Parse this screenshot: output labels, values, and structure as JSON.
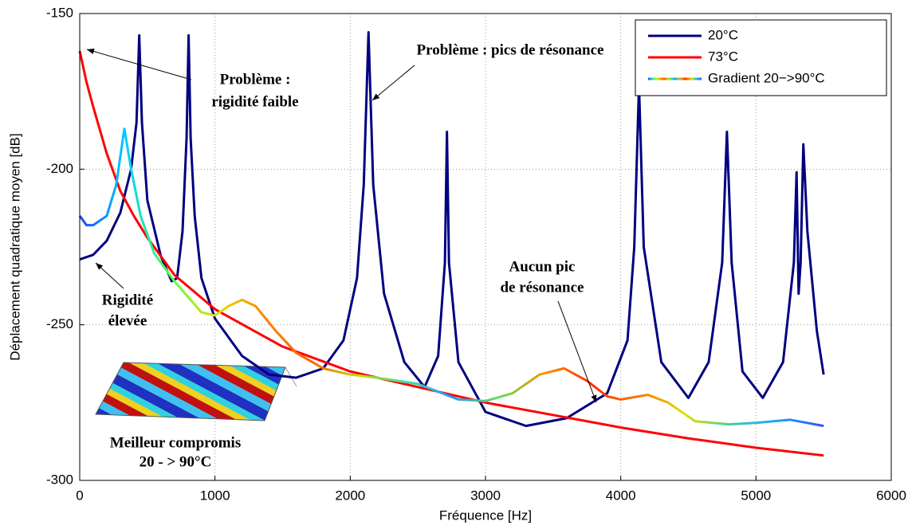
{
  "chart_data": {
    "type": "line",
    "xlabel": "Fréquence [Hz]",
    "ylabel": "Déplacement quadratique moyen [dB]",
    "xlim": [
      0,
      6000
    ],
    "xticks": [
      0,
      1000,
      2000,
      3000,
      4000,
      5000,
      6000
    ],
    "ylim": [
      -300,
      -150
    ],
    "yticks": [
      -300,
      -250,
      -200,
      -150
    ],
    "grid": true,
    "legend": "upper right",
    "series": [
      {
        "name": "20°C",
        "color": "#000080",
        "x": [
          0,
          100,
          200,
          300,
          380,
          420,
          440,
          460,
          500,
          600,
          680,
          720,
          760,
          790,
          805,
          820,
          850,
          900,
          1000,
          1200,
          1400,
          1600,
          1800,
          1950,
          2050,
          2100,
          2135,
          2170,
          2250,
          2400,
          2550,
          2650,
          2700,
          2715,
          2730,
          2800,
          3000,
          3300,
          3600,
          3900,
          4050,
          4100,
          4135,
          4170,
          4300,
          4500,
          4650,
          4750,
          4785,
          4820,
          4900,
          5050,
          5200,
          5280,
          5300,
          5315,
          5330,
          5350,
          5380,
          5450,
          5500
        ],
        "values": [
          -229,
          -227.5,
          -223,
          -214,
          -200,
          -185,
          -157,
          -185,
          -210,
          -228,
          -236,
          -235,
          -220,
          -190,
          -157,
          -190,
          -215,
          -235,
          -248,
          -260,
          -266,
          -267,
          -264,
          -255,
          -235,
          -205,
          -156,
          -205,
          -240,
          -262,
          -270,
          -260,
          -230,
          -188,
          -230,
          -262,
          -278,
          -282.5,
          -280,
          -272,
          -255,
          -225,
          -173,
          -225,
          -262,
          -273.5,
          -262,
          -230,
          -188,
          -230,
          -265,
          -273.5,
          -262,
          -230,
          -201,
          -240,
          -230,
          -192,
          -220,
          -252,
          -266
        ]
      },
      {
        "name": "73°C",
        "color": "#ff0000",
        "x": [
          0,
          50,
          100,
          200,
          300,
          400,
          500,
          700,
          1000,
          1500,
          2000,
          2500,
          3000,
          3500,
          4000,
          4500,
          5000,
          5500
        ],
        "values": [
          -162,
          -172,
          -180,
          -195,
          -207,
          -215,
          -222,
          -234,
          -245,
          -257,
          -265,
          -270,
          -275,
          -279,
          -283,
          -286.5,
          -289.5,
          -292
        ]
      },
      {
        "name": "Gradient 20−>90°C",
        "color": [
          "#2040ff",
          "#00d0ff",
          "#60ff40",
          "#e0e000",
          "#ff8000",
          "#ff6000",
          "#c0e000",
          "#40e0a0",
          "#3090ff",
          "#60e060",
          "#ff9000",
          "#ff3000",
          "#ff7000",
          "#e0e000",
          "#40d0a0",
          "#20a0ff",
          "#3050ff"
        ],
        "x": [
          0,
          50,
          100,
          200,
          270,
          330,
          380,
          450,
          550,
          700,
          900,
          1000,
          1100,
          1200,
          1300,
          1450,
          1600,
          1800,
          2000,
          2200,
          2500,
          2800,
          3000,
          3200,
          3400,
          3580,
          3750,
          3900,
          4000,
          4200,
          4350,
          4550,
          4800,
          5000,
          5250,
          5500
        ],
        "values": [
          -215,
          -218,
          -218,
          -215,
          -205,
          -187,
          -200,
          -215,
          -227,
          -236,
          -246,
          -247,
          -244,
          -242,
          -244,
          -252,
          -259,
          -264,
          -266,
          -267,
          -269,
          -274,
          -274.5,
          -272,
          -266,
          -264,
          -268,
          -273,
          -274,
          -272.5,
          -275,
          -281,
          -282,
          -281.5,
          -280.5,
          -282.5
        ]
      }
    ],
    "annotations": [
      {
        "lines": [
          "Problème :",
          "rigidité faible"
        ],
        "color": "#ff0000"
      },
      {
        "lines": [
          "Problème : pics de résonance"
        ],
        "color": "#000080"
      },
      {
        "lines": [
          "Rigidité",
          "élevée"
        ],
        "color": "#000080"
      },
      {
        "lines": [
          "Aucun pic",
          "de résonance"
        ],
        "color": "#ff0000"
      },
      {
        "lines": [
          "Meilleur compromis",
          "20 - > 90°C"
        ]
      }
    ]
  }
}
